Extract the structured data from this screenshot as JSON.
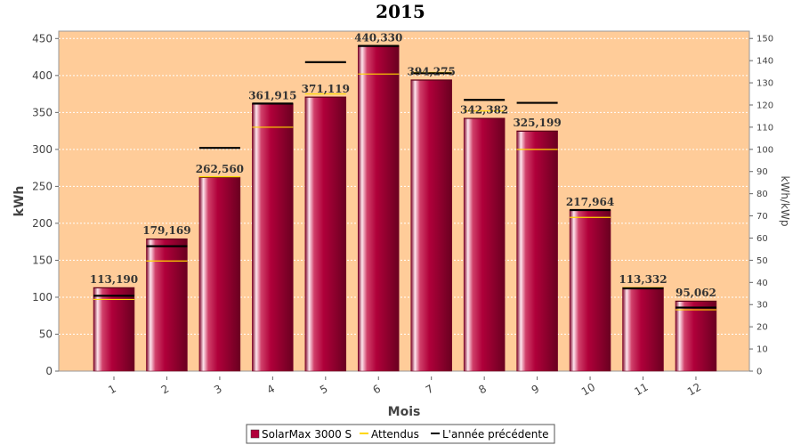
{
  "chart_data": {
    "type": "bar",
    "title": "2015",
    "xlabel": "Mois",
    "ylabel": "kWh",
    "y2label": "kWh/kWp",
    "ylim": [
      0,
      460
    ],
    "y2lim": [
      0,
      153.3
    ],
    "yticks": [
      0,
      50,
      100,
      150,
      200,
      250,
      300,
      350,
      400,
      450
    ],
    "y2ticks": [
      0,
      10,
      20,
      30,
      40,
      50,
      60,
      70,
      80,
      90,
      100,
      110,
      120,
      130,
      140,
      150
    ],
    "categories": [
      "1",
      "2",
      "3",
      "4",
      "5",
      "6",
      "7",
      "8",
      "9",
      "10",
      "11",
      "12"
    ],
    "grid": true,
    "legend_position": "bottom",
    "series": [
      {
        "name": "SolarMax 3000 S",
        "kind": "bar",
        "color": "#b0003a",
        "values": [
          113.19,
          179.169,
          262.56,
          361.915,
          371.119,
          440.33,
          394.275,
          342.382,
          325.199,
          217.964,
          113.332,
          95.062
        ],
        "labels": [
          "113,190",
          "179,169",
          "262,560",
          "361,915",
          "371,119",
          "440,330",
          "394,275",
          "342,382",
          "325,199",
          "217,964",
          "113,332",
          "95,062"
        ]
      },
      {
        "name": "Attendus",
        "kind": "marker",
        "color": "#ffd700",
        "values": [
          97,
          149,
          263,
          330,
          375,
          402,
          404,
          352,
          300,
          208,
          113,
          83
        ]
      },
      {
        "name": "L'année précédente",
        "kind": "marker",
        "color": "#000000",
        "values": [
          102,
          169,
          302,
          362,
          418,
          440,
          403,
          367,
          363,
          218,
          112,
          86
        ]
      }
    ],
    "colors": {
      "plot_background": "#ffcc99",
      "bar_fill": "#b0003a",
      "bar_highlight": "#ffe6ee",
      "expected_marker": "#ffd700",
      "previous_year_marker": "#000000"
    }
  }
}
